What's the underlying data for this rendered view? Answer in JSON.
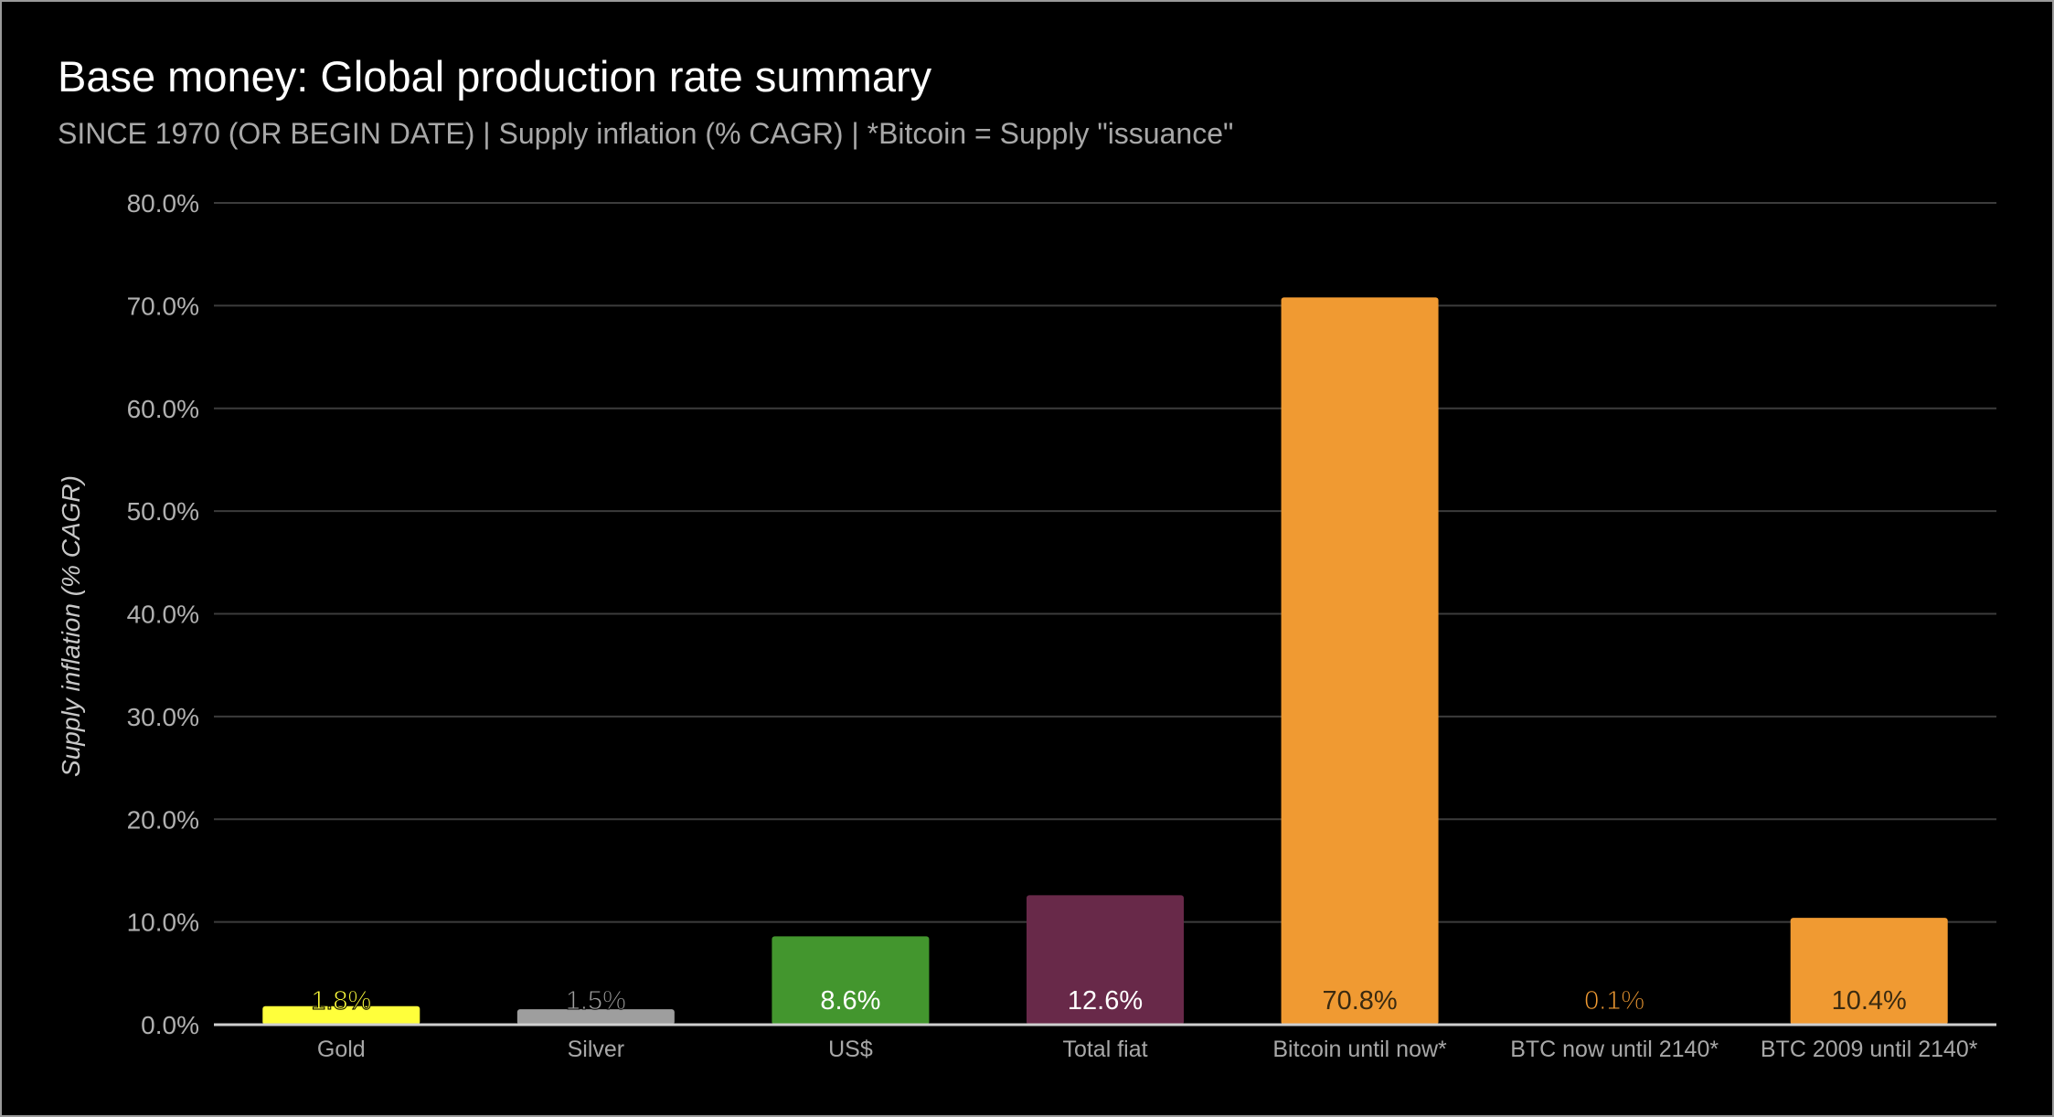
{
  "chart_data": {
    "type": "bar",
    "title": "Base money: Global production rate summary",
    "subtitle": "SINCE 1970 (OR BEGIN DATE) | Supply inflation (% CAGR) | *Bitcoin = Supply \"issuance\"",
    "xlabel": "",
    "ylabel": "Supply inflation (% CAGR)",
    "ylim": [
      0,
      80
    ],
    "yticks": [
      "0.0%",
      "10.0%",
      "20.0%",
      "30.0%",
      "40.0%",
      "50.0%",
      "60.0%",
      "70.0%",
      "80.0%"
    ],
    "grid": true,
    "categories": [
      "Gold",
      "Silver",
      "US$",
      "Total fiat",
      "Bitcoin until now*",
      "BTC now until 2140*",
      "BTC 2009 until 2140*"
    ],
    "values": [
      1.8,
      1.5,
      8.6,
      12.6,
      70.8,
      0.1,
      10.4
    ],
    "data_labels": [
      "1.8%",
      "1.5%",
      "8.6%",
      "12.6%",
      "70.8%",
      "0.1%",
      "10.4%"
    ],
    "colors": [
      "#ffff3b",
      "#9e9e9e",
      "#43962e",
      "#682949",
      "#f09a32",
      "#f09a32",
      "#f09a32"
    ],
    "label_colors": [
      "#ffff3b",
      "#9e9e9e",
      "#ffffff",
      "#ffffff",
      "#3a2a10",
      "#f09a32",
      "#3a2a10"
    ]
  }
}
